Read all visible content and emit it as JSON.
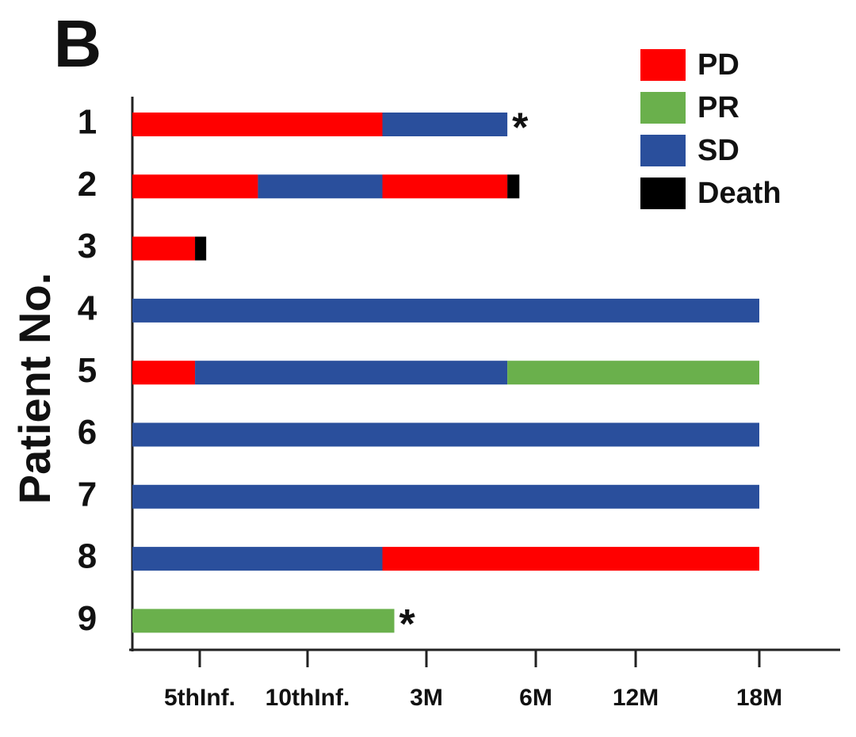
{
  "chart_data": {
    "type": "swimmer",
    "panel_label": "B",
    "y_label": "Patient No.",
    "legend": [
      {
        "name": "PD",
        "color": "#ff0000"
      },
      {
        "name": "PR",
        "color": "#6ab04c"
      },
      {
        "name": "SD",
        "color": "#2a4f9c"
      },
      {
        "name": "Death",
        "color": "#000000"
      }
    ],
    "xlim": [
      0,
      6.65
    ],
    "xticks": [
      {
        "value": 1,
        "label": "5thInf."
      },
      {
        "value": 2,
        "label": "10thInf."
      },
      {
        "value": 3,
        "label": "3M"
      },
      {
        "value": 4,
        "label": "6M"
      },
      {
        "value": 5,
        "label": "12M"
      },
      {
        "value": 6,
        "label": "18M"
      }
    ],
    "patients": [
      {
        "label": "1",
        "segments": [
          {
            "status": "PD",
            "value": 2.63
          },
          {
            "status": "SD",
            "value": 1.11
          }
        ],
        "note": "*"
      },
      {
        "label": "2",
        "segments": [
          {
            "status": "PD",
            "value": 1.54
          },
          {
            "status": "SD",
            "value": 1.09
          },
          {
            "status": "PD",
            "value": 1.11
          },
          {
            "status": "Death",
            "value": 0.11
          }
        ]
      },
      {
        "label": "3",
        "segments": [
          {
            "status": "PD",
            "value": 0.93
          },
          {
            "status": "Death",
            "value": 0.13
          }
        ]
      },
      {
        "label": "4",
        "segments": [
          {
            "status": "SD",
            "value": 6
          }
        ]
      },
      {
        "label": "5",
        "segments": [
          {
            "status": "PD",
            "value": 0.93
          },
          {
            "status": "SD",
            "value": 2.81
          },
          {
            "status": "PR",
            "value": 2.26
          }
        ]
      },
      {
        "label": "6",
        "segments": [
          {
            "status": "SD",
            "value": 6
          }
        ]
      },
      {
        "label": "7",
        "segments": [
          {
            "status": "SD",
            "value": 6
          }
        ]
      },
      {
        "label": "8",
        "segments": [
          {
            "status": "SD",
            "value": 2.63
          },
          {
            "status": "PD",
            "value": 3.37
          }
        ]
      },
      {
        "label": "9",
        "segments": [
          {
            "status": "PR",
            "value": 2.73
          }
        ],
        "note": "*"
      }
    ]
  }
}
